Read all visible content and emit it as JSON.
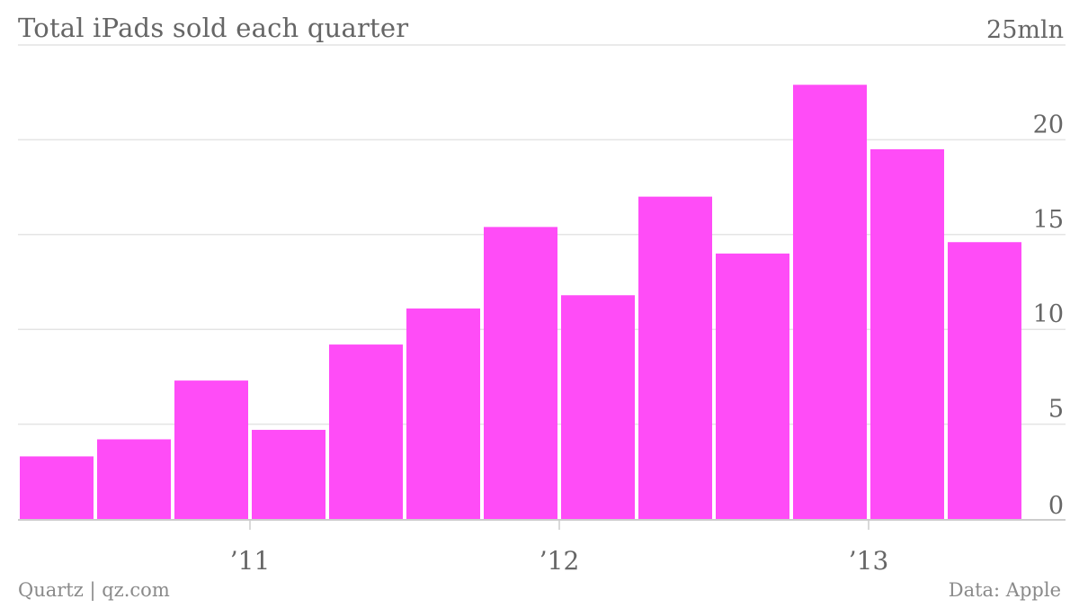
{
  "title": "Total iPads sold each quarter",
  "footer": {
    "source_left": "Quartz | qz.com",
    "source_right": "Data: Apple"
  },
  "colors": {
    "bar": "#ff4cf7",
    "grid": "#e4e4e4",
    "axis": "#cccccc",
    "text": "#666666"
  },
  "chart_data": {
    "type": "bar",
    "title": "Total iPads sold each quarter",
    "xlabel": "",
    "ylabel": "",
    "unit": "mln",
    "ylim": [
      0,
      25
    ],
    "y_ticks": [
      0,
      5,
      10,
      15,
      20,
      25
    ],
    "y_tick_labels": [
      "0",
      "5",
      "10",
      "15",
      "20",
      "25mln"
    ],
    "x_tick_labels": [
      "’11",
      "’12",
      "’13"
    ],
    "x_tick_before_bar": [
      3,
      7,
      11
    ],
    "grid": true,
    "y_axis_position": "right",
    "values": [
      3.3,
      4.2,
      7.3,
      4.7,
      9.2,
      11.1,
      15.4,
      11.8,
      17.0,
      14.0,
      22.9,
      19.5,
      14.6
    ]
  }
}
